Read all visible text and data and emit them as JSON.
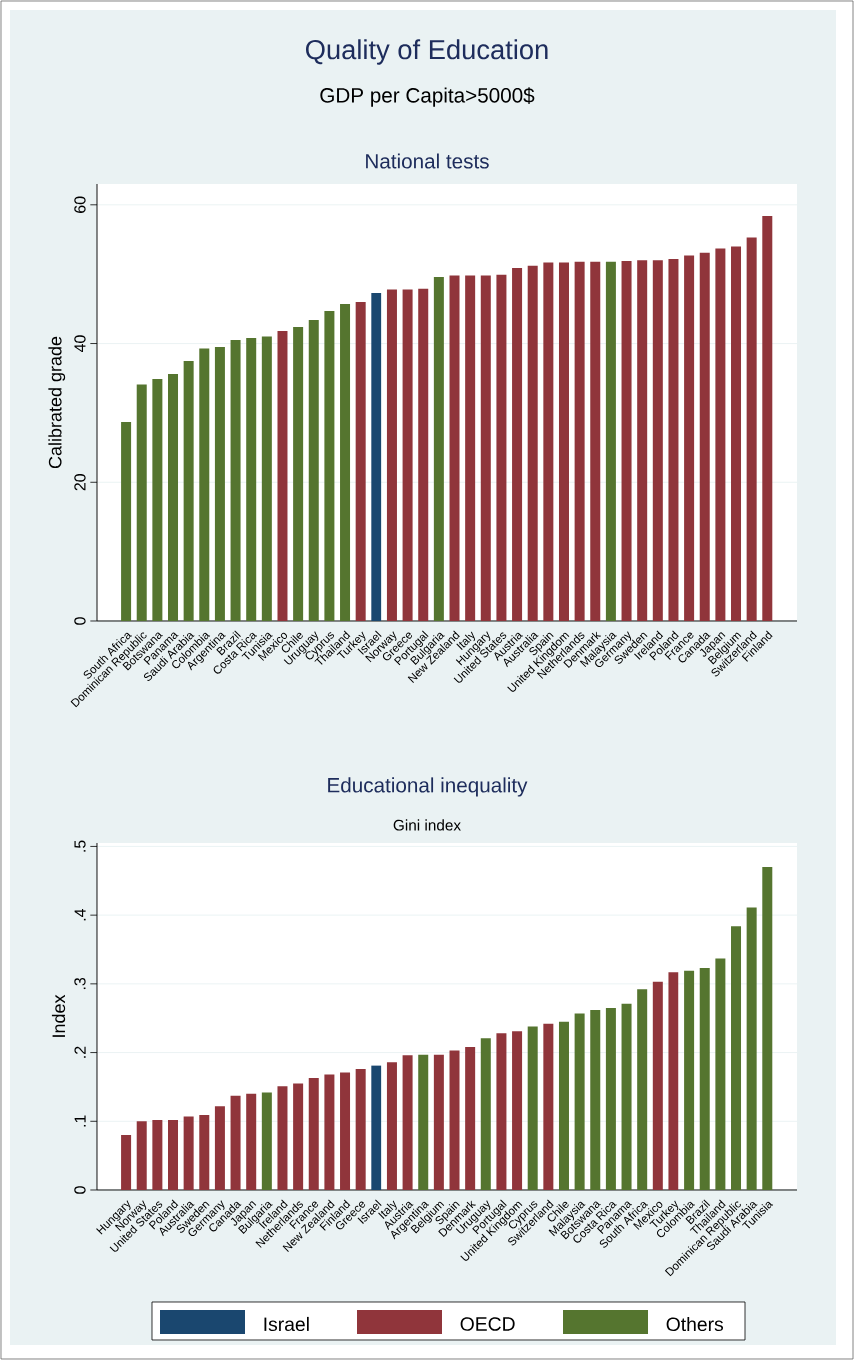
{
  "chart_data": [
    {
      "type": "bar",
      "title": "Quality of Education",
      "subtitle": "GDP per Capita>5000$",
      "annotations": [
        "National tests"
      ],
      "ylabel": "Calibrated grade",
      "categories": [
        "South Africa",
        "Dominican Republic",
        "Botswana",
        "Panama",
        "Saudi Arabia",
        "Colombia",
        "Argentina",
        "Brazil",
        "Costa Rica",
        "Tunisia",
        "Mexico",
        "Chile",
        "Uruguay",
        "Cyprus",
        "Thailand",
        "Turkey",
        "Israel",
        "Norway",
        "Greece",
        "Portugal",
        "Bulgaria",
        "New Zealand",
        "Italy",
        "Hungary",
        "United States",
        "Austria",
        "Australia",
        "Spain",
        "United Kingdom",
        "Netherlands",
        "Denmark",
        "Malaysia",
        "Germany",
        "Sweden",
        "Ireland",
        "Poland",
        "France",
        "Canada",
        "Japan",
        "Belgium",
        "Switzerland",
        "Finland"
      ],
      "series": [
        {
          "color": "#1a476f",
          "values": [
            null,
            null,
            null,
            null,
            null,
            null,
            null,
            null,
            null,
            null,
            null,
            null,
            null,
            null,
            null,
            null,
            47.3,
            null,
            null,
            null,
            null,
            null,
            null,
            null,
            null,
            null,
            null,
            null,
            null,
            null,
            null,
            null,
            null,
            null,
            null,
            null,
            null,
            null,
            null,
            null,
            null,
            null
          ]
        },
        {
          "color": "#90353b",
          "values": [
            null,
            null,
            null,
            null,
            null,
            null,
            null,
            null,
            null,
            null,
            41.8,
            null,
            null,
            null,
            null,
            46.0,
            null,
            47.8,
            47.8,
            47.9,
            null,
            49.8,
            49.8,
            49.8,
            49.9,
            50.9,
            51.2,
            51.7,
            51.7,
            51.8,
            51.8,
            null,
            51.9,
            52.0,
            52.0,
            52.2,
            52.7,
            53.1,
            53.7,
            54.0,
            55.3,
            58.4
          ]
        },
        {
          "color": "#55752f",
          "values": [
            28.7,
            34.1,
            34.9,
            35.6,
            37.5,
            39.3,
            39.5,
            40.5,
            40.8,
            41.0,
            null,
            42.4,
            43.4,
            44.7,
            45.7,
            null,
            null,
            null,
            null,
            null,
            49.6,
            null,
            null,
            null,
            null,
            null,
            null,
            null,
            null,
            null,
            null,
            51.8,
            null,
            null,
            null,
            null,
            null,
            null,
            null,
            null,
            null,
            null
          ]
        }
      ],
      "ylim": [
        0,
        63
      ],
      "yticks": [
        0,
        20,
        40,
        60
      ],
      "grid": "y"
    },
    {
      "type": "bar",
      "title": "Educational inequality",
      "subtitle": "Gini index",
      "ylabel": "Index",
      "categories": [
        "Hungary",
        "Norway",
        "United States",
        "Poland",
        "Australia",
        "Sweden",
        "Germany",
        "Canada",
        "Japan",
        "Bulgaria",
        "Ireland",
        "Netherlands",
        "France",
        "New Zealand",
        "Finland",
        "Greece",
        "Israel",
        "Italy",
        "Austria",
        "Argentina",
        "Belgium",
        "Spain",
        "Denmark",
        "Uruguay",
        "Portugal",
        "United Kingdom",
        "Cyprus",
        "Switzerland",
        "Chile",
        "Malaysia",
        "Botswana",
        "Costa Rica",
        "Panama",
        "South Africa",
        "Mexico",
        "Turkey",
        "Colombia",
        "Brazil",
        "Thailand",
        "Dominican Republic",
        "Saudi Arabia",
        "Tunisia"
      ],
      "series": [
        {
          "name": "Israel",
          "color": "#1a476f",
          "values": [
            null,
            null,
            null,
            null,
            null,
            null,
            null,
            null,
            null,
            null,
            null,
            null,
            null,
            null,
            null,
            null,
            0.181,
            null,
            null,
            null,
            null,
            null,
            null,
            null,
            null,
            null,
            null,
            null,
            null,
            null,
            null,
            null,
            null,
            null,
            null,
            null,
            null,
            null,
            null,
            null,
            null,
            null
          ]
        },
        {
          "name": "OECD",
          "color": "#90353b",
          "values": [
            0.08,
            0.1,
            0.102,
            0.102,
            0.107,
            0.109,
            0.122,
            0.137,
            0.14,
            null,
            0.151,
            0.155,
            0.163,
            0.168,
            0.171,
            0.176,
            null,
            0.186,
            0.196,
            null,
            0.197,
            0.203,
            0.208,
            null,
            0.228,
            0.231,
            null,
            0.242,
            null,
            null,
            null,
            null,
            null,
            null,
            0.303,
            0.317,
            null,
            null,
            null,
            null,
            null,
            null
          ]
        },
        {
          "name": "Others",
          "color": "#55752f",
          "values": [
            null,
            null,
            null,
            null,
            null,
            null,
            null,
            null,
            null,
            0.142,
            null,
            null,
            null,
            null,
            null,
            null,
            null,
            null,
            null,
            0.197,
            null,
            null,
            null,
            0.221,
            null,
            null,
            0.238,
            null,
            0.245,
            0.257,
            0.262,
            0.265,
            0.271,
            0.292,
            null,
            null,
            0.319,
            0.323,
            0.337,
            0.384,
            0.411,
            0.47
          ]
        }
      ],
      "ylim": [
        0,
        0.505
      ],
      "yticks": [
        0,
        {
          "value": 0.1,
          "label": ".1"
        },
        {
          "value": 0.2,
          "label": ".2"
        },
        {
          "value": 0.3,
          "label": ".3"
        },
        {
          "value": 0.4,
          "label": ".4"
        },
        {
          "value": 0.5,
          "label": ".5"
        }
      ],
      "grid": "y",
      "legend": "bottom"
    }
  ]
}
